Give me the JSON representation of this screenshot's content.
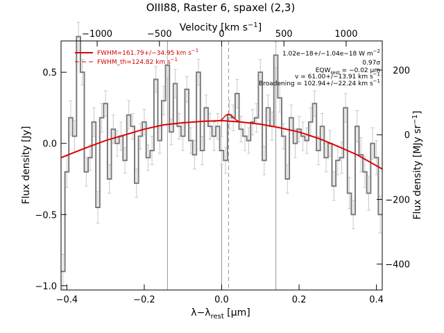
{
  "chart_data": {
    "type": "line",
    "title": "OIII88, Raster 6, spaxel (2,3)",
    "xlabel": "λ−λ",
    "xlabel_sub": "rest",
    "xlabel_unit": " [μm]",
    "ylabel": "Flux density [Jy]",
    "ylabel_right": "Flux density [MJy sr",
    "ylabel_right_exp": "−1",
    "ylabel_right_end": "]",
    "x2label": "Velocity [km s",
    "x2label_exp": "−1",
    "x2label_end": "]",
    "xlim": [
      -0.415,
      0.415
    ],
    "ylim": [
      -1.03,
      0.72
    ],
    "y2lim": [
      -480,
      290
    ],
    "v2lim": [
      -1290,
      1290
    ],
    "xticks": [
      -0.4,
      -0.2,
      0.0,
      0.2,
      0.4
    ],
    "xtick_labels": [
      "−0.4",
      "−0.2",
      "0.0",
      "0.2",
      "0.4"
    ],
    "yticks": [
      -1.0,
      -0.5,
      0.0,
      0.5
    ],
    "ytick_labels": [
      "−1.0",
      "−0.5",
      "0.0",
      "0.5"
    ],
    "y2ticks": [
      -400,
      -200,
      0,
      200
    ],
    "y2tick_labels": [
      "−400",
      "−200",
      "0",
      "200"
    ],
    "v2ticks": [
      -1000,
      -500,
      0,
      500,
      1000
    ],
    "v2tick_labels": [
      "−1000",
      "−500",
      "0",
      "500",
      "1000"
    ],
    "vertical_lines": [
      {
        "x": -0.14,
        "style": "solid"
      },
      {
        "x": 0.0,
        "style": "solid"
      },
      {
        "x": 0.018,
        "style": "dashed"
      },
      {
        "x": 0.14,
        "style": "solid"
      }
    ],
    "legend": [
      {
        "name": "FWHM=161.79+/−34.95 km s",
        "exp": "−1",
        "style": "solid"
      },
      {
        "name": "FWHM_th=124.82 km s",
        "exp": "−1",
        "style": "dashed"
      }
    ],
    "annotations": [
      {
        "text": "1.02e−18+/−1.04e−18 W m",
        "exp": "−2"
      },
      {
        "text": "0.97σ"
      },
      {
        "text": "EQW",
        "sub": "rest",
        "text2": " = −0.02 μm"
      },
      {
        "text": "v = 61.00+/−13.91 km s",
        "exp": "−1"
      },
      {
        "text": "Broadening = 102.94+/−22.24 km s",
        "exp": "−1"
      }
    ],
    "series": [
      {
        "type": "step",
        "x": [
          -0.41,
          -0.4,
          -0.39,
          -0.38,
          -0.37,
          -0.36,
          -0.35,
          -0.34,
          -0.33,
          -0.32,
          -0.31,
          -0.3,
          -0.29,
          -0.28,
          -0.27,
          -0.26,
          -0.25,
          -0.24,
          -0.23,
          -0.22,
          -0.21,
          -0.2,
          -0.19,
          -0.18,
          -0.17,
          -0.16,
          -0.15,
          -0.14,
          -0.13,
          -0.12,
          -0.11,
          -0.1,
          -0.09,
          -0.08,
          -0.07,
          -0.06,
          -0.05,
          -0.04,
          -0.03,
          -0.02,
          -0.01,
          0.0,
          0.01,
          0.02,
          0.03,
          0.04,
          0.05,
          0.06,
          0.07,
          0.08,
          0.09,
          0.1,
          0.11,
          0.12,
          0.13,
          0.14,
          0.15,
          0.16,
          0.17,
          0.18,
          0.19,
          0.2,
          0.21,
          0.22,
          0.23,
          0.24,
          0.25,
          0.26,
          0.27,
          0.28,
          0.29,
          0.3,
          0.31,
          0.32,
          0.33,
          0.34,
          0.35,
          0.36,
          0.37,
          0.38,
          0.39,
          0.4,
          0.41
        ],
        "values": [
          -0.9,
          -0.2,
          0.18,
          0.05,
          0.75,
          0.5,
          -0.2,
          -0.1,
          0.15,
          -0.45,
          0.18,
          0.28,
          -0.25,
          0.1,
          0.0,
          0.05,
          -0.12,
          0.2,
          0.12,
          -0.28,
          0.05,
          0.15,
          -0.1,
          -0.05,
          0.45,
          0.02,
          0.3,
          0.55,
          0.08,
          0.42,
          0.12,
          0.05,
          0.38,
          0.02,
          -0.08,
          0.5,
          -0.05,
          0.25,
          0.12,
          0.05,
          0.12,
          -0.05,
          -0.12,
          0.2,
          0.18,
          0.35,
          0.1,
          0.05,
          0.02,
          0.15,
          0.18,
          0.5,
          -0.12,
          0.25,
          0.12,
          0.62,
          0.32,
          0.05,
          -0.25,
          0.18,
          0.0,
          0.1,
          0.05,
          0.02,
          0.15,
          0.28,
          -0.05,
          0.12,
          -0.1,
          0.0,
          -0.3,
          -0.12,
          -0.1,
          0.25,
          -0.35,
          -0.5,
          0.12,
          -0.08,
          -0.2,
          -0.35,
          0.0,
          -0.1,
          -0.5
        ],
        "errors": [
          0.12,
          0.11,
          0.12,
          0.11,
          0.1,
          0.09,
          0.1,
          0.09,
          0.1,
          0.11,
          0.1,
          0.09,
          0.1,
          0.1,
          0.09,
          0.1,
          0.09,
          0.1,
          0.09,
          0.1,
          0.09,
          0.09,
          0.09,
          0.1,
          0.09,
          0.09,
          0.1,
          0.09,
          0.09,
          0.1,
          0.09,
          0.1,
          0.09,
          0.09,
          0.1,
          0.09,
          0.1,
          0.09,
          0.09,
          0.1,
          0.09,
          0.1,
          0.09,
          0.1,
          0.09,
          0.1,
          0.09,
          0.1,
          0.09,
          0.09,
          0.1,
          0.09,
          0.1,
          0.09,
          0.1,
          0.09,
          0.1,
          0.09,
          0.1,
          0.09,
          0.1,
          0.09,
          0.1,
          0.09,
          0.1,
          0.09,
          0.1,
          0.09,
          0.1,
          0.09,
          0.1,
          0.1,
          0.11,
          0.1,
          0.11,
          0.1,
          0.11,
          0.12,
          0.11,
          0.12,
          0.11,
          0.12,
          0.13
        ],
        "color": "#7a7a7a"
      },
      {
        "type": "curve",
        "name": "continuum fit",
        "x": [
          -0.415,
          -0.35,
          -0.3,
          -0.25,
          -0.2,
          -0.15,
          -0.1,
          -0.05,
          0.0,
          0.05,
          0.1,
          0.15,
          0.2,
          0.25,
          0.3,
          0.35,
          0.415
        ],
        "values": [
          -0.1,
          -0.03,
          0.02,
          0.06,
          0.1,
          0.13,
          0.145,
          0.155,
          0.16,
          0.15,
          0.135,
          0.11,
          0.08,
          0.035,
          -0.02,
          -0.08,
          -0.18
        ],
        "color": "#e00000"
      },
      {
        "type": "curve",
        "name": "line profile",
        "x": [
          -0.02,
          -0.01,
          0.0,
          0.005,
          0.01,
          0.015,
          0.02,
          0.025,
          0.03,
          0.035,
          0.04,
          0.05
        ],
        "values": [
          0.155,
          0.158,
          0.165,
          0.18,
          0.195,
          0.205,
          0.205,
          0.198,
          0.185,
          0.17,
          0.16,
          0.15
        ],
        "color": "#e00000"
      }
    ]
  }
}
